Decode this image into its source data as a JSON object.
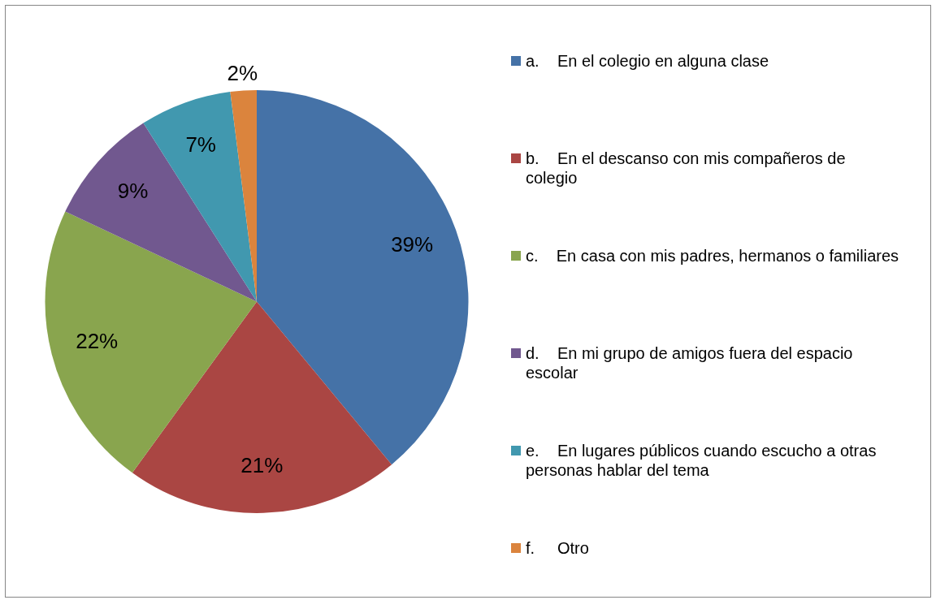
{
  "chart_data": {
    "type": "pie",
    "legend": "right",
    "categories": [
      "a.    En el colegio en alguna clase",
      "b.    En el descanso con mis compañeros de colegio",
      "c.    En casa con mis padres, hermanos o familiares",
      "d.    En mi grupo de amigos fuera del espacio escolar",
      "e.    En lugares públicos cuando escucho a otras personas hablar del tema",
      "f.     Otro"
    ],
    "values": [
      39,
      21,
      22,
      9,
      7,
      2
    ],
    "colors": [
      "#4572a7",
      "#aa4643",
      "#89a54e",
      "#71588f",
      "#4198af",
      "#db843d"
    ],
    "value_labels": [
      "39%",
      "21%",
      "22%",
      "9%",
      "7%",
      "2%"
    ]
  }
}
